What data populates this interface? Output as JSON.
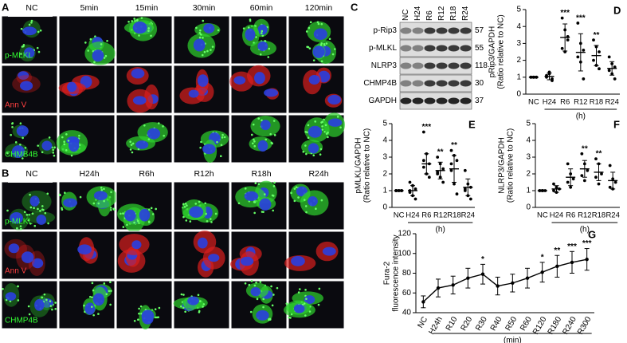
{
  "panels": {
    "A": {
      "label": "A",
      "columns": [
        "NC",
        "5min",
        "15min",
        "30min",
        "60min",
        "120min"
      ],
      "rows": [
        "p-MLKL",
        "Ann V",
        "CHMB4B"
      ]
    },
    "B": {
      "label": "B",
      "columns": [
        "NC",
        "H24h",
        "R6h",
        "R12h",
        "R18h",
        "R24h"
      ],
      "rows": [
        "p-MLKL",
        "Ann V",
        "CHMP4B"
      ]
    },
    "C": {
      "label": "C",
      "lanes": [
        "NC",
        "H24",
        "R6",
        "R12",
        "R18",
        "R24"
      ],
      "proteins": [
        {
          "name": "p-Rip3",
          "kda": 57
        },
        {
          "name": "p-MLKL",
          "kda": 55
        },
        {
          "name": "NLRP3",
          "kda": 118
        },
        {
          "name": "CHMP4B",
          "kda": 30
        },
        {
          "name": "GAPDH",
          "kda": 37
        }
      ]
    }
  },
  "chart_data": [
    {
      "label": "D",
      "type": "dot",
      "ylabel": [
        "pRip3/GAPDH",
        "(Ratio relative to NC)"
      ],
      "xlabel": "(h)",
      "categories": [
        "NC",
        "H24",
        "R6",
        "R12",
        "R18",
        "R24"
      ],
      "points": [
        [
          1,
          1,
          1,
          1,
          1,
          1
        ],
        [
          1.0,
          1.2,
          0.8,
          1.1,
          1.3,
          0.9
        ],
        [
          4.5,
          3.8,
          3.2,
          2.7,
          2.5,
          3.4
        ],
        [
          4.2,
          3.0,
          2.6,
          2.2,
          1.9,
          0.9
        ],
        [
          3.2,
          2.8,
          2.5,
          2.0,
          1.7,
          1.5
        ],
        [
          2.2,
          1.8,
          1.6,
          1.4,
          1.2,
          0.9
        ]
      ],
      "values": [
        1,
        1.05,
        3.35,
        2.47,
        2.28,
        1.52
      ],
      "errors": [
        0.05,
        0.2,
        0.8,
        1.1,
        0.6,
        0.4
      ],
      "significance": [
        null,
        null,
        "***",
        "***",
        "**",
        null
      ],
      "ylim": [
        0,
        5
      ],
      "yticks": [
        0,
        1,
        2,
        3,
        4,
        5
      ],
      "color": "#000000"
    },
    {
      "label": "E",
      "type": "dot",
      "ylabel": [
        "pMLKL/GAPDH",
        "(Ratio relative to NC)"
      ],
      "xlabel": "(h)",
      "categories": [
        "NC",
        "H24",
        "R6",
        "R12",
        "R18",
        "R24"
      ],
      "points": [
        [
          1,
          1,
          1,
          1,
          1,
          1,
          1
        ],
        [
          1.5,
          1.3,
          1.1,
          0.9,
          0.7,
          0.5,
          1.0
        ],
        [
          4.5,
          3.2,
          2.6,
          2.4,
          2.0,
          1.8,
          2.8
        ],
        [
          3.0,
          2.6,
          2.3,
          2.1,
          1.8,
          1.5,
          2.0
        ],
        [
          3.4,
          3.1,
          2.8,
          2.2,
          1.4,
          0.8,
          2.6
        ],
        [
          2.2,
          1.4,
          1.2,
          1.0,
          0.7,
          0.5,
          1.1
        ]
      ],
      "values": [
        1,
        1,
        2.6,
        2.2,
        2.3,
        1.2
      ],
      "errors": [
        0.05,
        0.3,
        0.6,
        0.5,
        0.8,
        0.5
      ],
      "significance": [
        null,
        null,
        "***",
        "**",
        "**",
        null
      ],
      "ylim": [
        0,
        5
      ],
      "yticks": [
        0,
        1,
        2,
        3,
        4,
        5
      ],
      "color": "#000000"
    },
    {
      "label": "F",
      "type": "dot",
      "ylabel": [
        "NLRP3/GAPDH",
        "(Ratio relative to NC)"
      ],
      "xlabel": "(h)",
      "categories": [
        "NC",
        "H24",
        "R6",
        "R12",
        "R18",
        "R24"
      ],
      "points": [
        [
          1,
          1,
          1,
          1,
          1
        ],
        [
          1.4,
          1.2,
          1.1,
          1.0,
          0.9
        ],
        [
          2.6,
          2.0,
          1.7,
          1.5,
          1.2
        ],
        [
          3.2,
          2.6,
          2.2,
          1.9,
          1.6
        ],
        [
          2.9,
          2.6,
          2.0,
          1.8,
          1.4
        ],
        [
          2.5,
          1.7,
          1.5,
          1.2,
          1.1
        ]
      ],
      "values": [
        1,
        1.1,
        1.8,
        2.3,
        2.1,
        1.6
      ],
      "errors": [
        0.05,
        0.2,
        0.5,
        0.5,
        0.5,
        0.5
      ],
      "significance": [
        null,
        null,
        null,
        "**",
        "**",
        null
      ],
      "ylim": [
        0,
        5
      ],
      "yticks": [
        0,
        1,
        2,
        3,
        4,
        5
      ],
      "color": "#000000"
    },
    {
      "label": "G",
      "type": "line",
      "ylabel": [
        "Fura-2",
        "fluorescence intensity"
      ],
      "xlabel": "(min)",
      "categories": [
        "NC",
        "H24h",
        "R10",
        "R20",
        "R30",
        "R40",
        "R50",
        "R60",
        "R120",
        "R180",
        "R240",
        "R300"
      ],
      "values": [
        51,
        65,
        68,
        75,
        79,
        67,
        70,
        75,
        81,
        87,
        91,
        94
      ],
      "errors": [
        6,
        9,
        9,
        10,
        10,
        9,
        9,
        10,
        10,
        11,
        11,
        11
      ],
      "significance": [
        null,
        null,
        null,
        null,
        "*",
        null,
        null,
        null,
        "*",
        "**",
        "***",
        "***"
      ],
      "ylim": [
        40,
        120
      ],
      "yticks": [
        40,
        60,
        80,
        100,
        120
      ],
      "color": "#000000"
    }
  ]
}
